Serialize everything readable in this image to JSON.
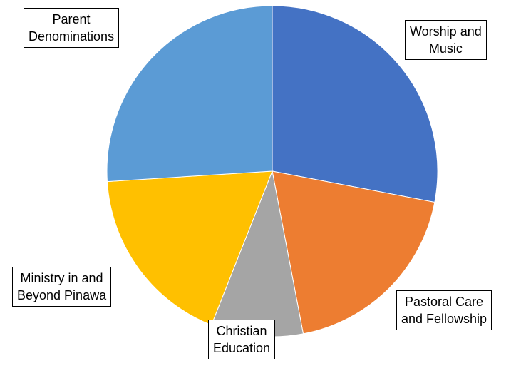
{
  "chart_data": {
    "type": "pie",
    "start_angle_deg": 0,
    "direction": "clockwise",
    "slices": [
      {
        "lines": [
          "Worship and",
          "Music"
        ],
        "value": 28,
        "color": "#4472C4"
      },
      {
        "lines": [
          "Pastoral Care",
          "and Fellowship"
        ],
        "value": 19,
        "color": "#ED7D31"
      },
      {
        "lines": [
          "Christian",
          "Education"
        ],
        "value": 9,
        "color": "#A5A5A5"
      },
      {
        "lines": [
          "Ministry in and",
          "Beyond Pinawa"
        ],
        "value": 18,
        "color": "#FFC000"
      },
      {
        "lines": [
          "Parent",
          "Denominations"
        ],
        "value": 26,
        "color": "#5B9BD5"
      }
    ]
  }
}
